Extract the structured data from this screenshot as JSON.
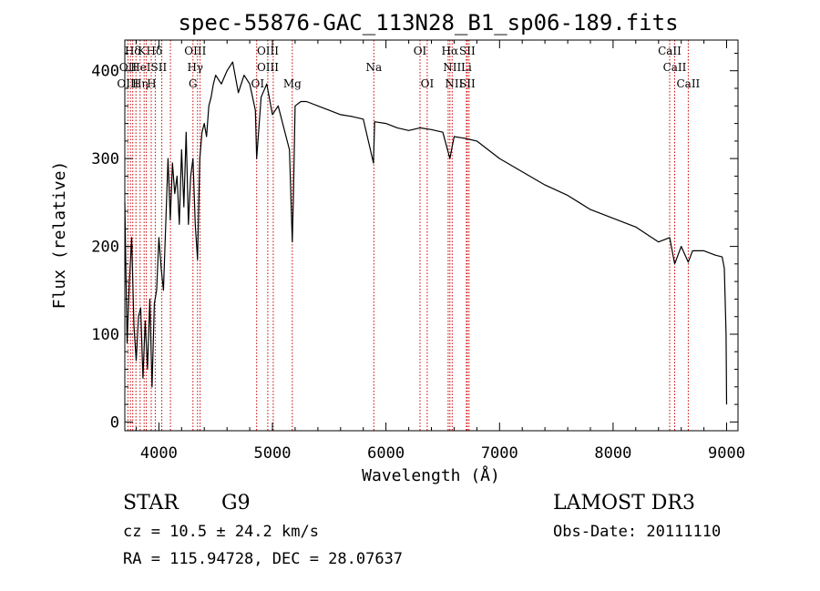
{
  "chart_data": {
    "type": "line",
    "title": "spec-55876-GAC_113N28_B1_sp06-189.fits",
    "xlabel": "Wavelength (Å)",
    "ylabel": "Flux (relative)",
    "xlim": [
      3700,
      9100
    ],
    "ylim": [
      -10,
      435
    ],
    "xticks": [
      4000,
      5000,
      6000,
      7000,
      8000,
      9000
    ],
    "yticks": [
      0,
      100,
      200,
      300,
      400
    ],
    "series": [
      {
        "name": "spectrum",
        "x": [
          3700,
          3720,
          3740,
          3760,
          3780,
          3800,
          3820,
          3840,
          3860,
          3880,
          3900,
          3920,
          3940,
          3960,
          3980,
          4000,
          4020,
          4040,
          4060,
          4080,
          4100,
          4120,
          4140,
          4160,
          4180,
          4200,
          4220,
          4240,
          4260,
          4280,
          4300,
          4320,
          4340,
          4360,
          4380,
          4400,
          4420,
          4440,
          4460,
          4480,
          4500,
          4550,
          4600,
          4650,
          4700,
          4750,
          4800,
          4850,
          4861,
          4900,
          4950,
          5000,
          5050,
          5100,
          5150,
          5175,
          5185,
          5200,
          5250,
          5300,
          5400,
          5500,
          5600,
          5700,
          5800,
          5890,
          5900,
          6000,
          6100,
          6200,
          6300,
          6400,
          6500,
          6563,
          6600,
          6700,
          6800,
          6900,
          7000,
          7200,
          7400,
          7600,
          7800,
          8000,
          8200,
          8400,
          8498,
          8542,
          8600,
          8662,
          8700,
          8800,
          8900,
          8960,
          8980,
          8995,
          9000
        ],
        "y": [
          250,
          90,
          160,
          210,
          110,
          70,
          120,
          130,
          50,
          115,
          60,
          140,
          40,
          135,
          150,
          210,
          175,
          150,
          225,
          300,
          230,
          295,
          260,
          280,
          225,
          310,
          245,
          330,
          225,
          280,
          300,
          225,
          185,
          300,
          330,
          340,
          325,
          360,
          370,
          385,
          395,
          385,
          400,
          410,
          375,
          395,
          385,
          355,
          300,
          370,
          385,
          350,
          360,
          335,
          310,
          205,
          260,
          360,
          365,
          365,
          360,
          355,
          350,
          348,
          345,
          295,
          342,
          340,
          335,
          332,
          335,
          333,
          330,
          300,
          325,
          323,
          320,
          310,
          300,
          285,
          270,
          258,
          242,
          232,
          222,
          205,
          210,
          180,
          200,
          182,
          195,
          195,
          190,
          188,
          175,
          100,
          20
        ]
      }
    ],
    "spectral_lines": [
      {
        "label": "Hδ",
        "wavelength": 3770,
        "row": 0
      },
      {
        "label": "K",
        "wavelength": 3850,
        "row": 0
      },
      {
        "label": "Hδ",
        "wavelength": 3960,
        "row": 0
      },
      {
        "label": "OIII",
        "wavelength": 4320,
        "row": 0
      },
      {
        "label": "OIII",
        "wavelength": 4960,
        "row": 0
      },
      {
        "label": "OI",
        "wavelength": 6300,
        "row": 0
      },
      {
        "label": "Hα",
        "wavelength": 6563,
        "row": 0
      },
      {
        "label": "SII",
        "wavelength": 6716,
        "row": 0
      },
      {
        "label": "CaII",
        "wavelength": 8498,
        "row": 0
      },
      {
        "label": "OII",
        "wavelength": 3727,
        "row": 1
      },
      {
        "label": "HeI",
        "wavelength": 3840,
        "row": 1
      },
      {
        "label": "SII",
        "wavelength": 4000,
        "row": 1
      },
      {
        "label": "Hγ",
        "wavelength": 4320,
        "row": 1
      },
      {
        "label": "OIII",
        "wavelength": 4960,
        "row": 1
      },
      {
        "label": "Na",
        "wavelength": 5893,
        "row": 1
      },
      {
        "label": "NII",
        "wavelength": 6583,
        "row": 1
      },
      {
        "label": "Li",
        "wavelength": 6708,
        "row": 1
      },
      {
        "label": "CaII",
        "wavelength": 8542,
        "row": 1
      },
      {
        "label": "OIII",
        "wavelength": 3727,
        "row": 2
      },
      {
        "label": "Hη",
        "wavelength": 3835,
        "row": 2
      },
      {
        "label": "H",
        "wavelength": 3935,
        "row": 2
      },
      {
        "label": "G",
        "wavelength": 4300,
        "row": 2
      },
      {
        "label": "OI",
        "wavelength": 4870,
        "row": 2
      },
      {
        "label": "Mg",
        "wavelength": 5175,
        "row": 2
      },
      {
        "label": "OI",
        "wavelength": 6363,
        "row": 2
      },
      {
        "label": "NII",
        "wavelength": 6600,
        "row": 2
      },
      {
        "label": "SII",
        "wavelength": 6716,
        "row": 2
      },
      {
        "label": "CaII",
        "wavelength": 8662,
        "row": 2
      }
    ],
    "line_markers": [
      3727,
      3750,
      3770,
      3798,
      3835,
      3870,
      3889,
      3933,
      3968,
      4026,
      4102,
      4300,
      4340,
      4363,
      4861,
      4959,
      5007,
      5175,
      5893,
      6300,
      6363,
      6548,
      6563,
      6583,
      6708,
      6716,
      6731,
      8498,
      8542,
      8662
    ],
    "line_marker_color": "#cc0000"
  },
  "info": {
    "object_class": "STAR",
    "subclass": "G9",
    "survey": "LAMOST DR3",
    "redshift": "cz = 10.5 ± 24.2 km/s",
    "obs_date": "Obs-Date: 20111110",
    "coords": "RA = 115.94728, DEC =  28.07637"
  }
}
